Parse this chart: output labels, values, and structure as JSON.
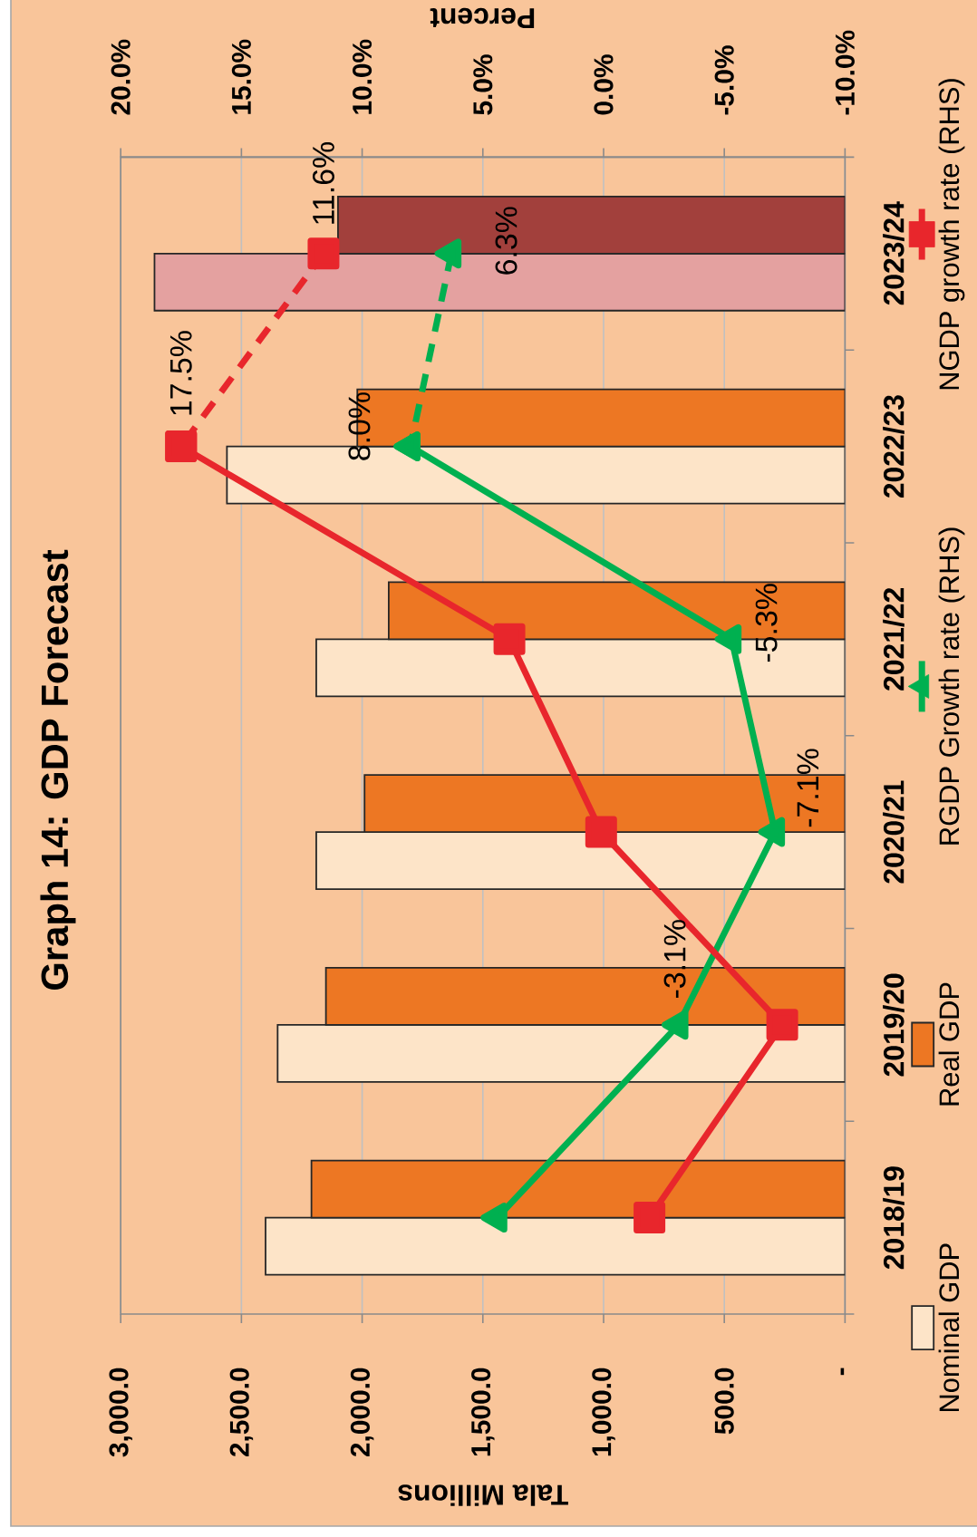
{
  "chart_data": {
    "type": "bar",
    "orientation": "horizontal",
    "title": "Graph 14: GDP Forecast",
    "xlabel": "Tala Millions",
    "x2label": "Percent",
    "categories": [
      "2023/24",
      "2022/23",
      "2021/22",
      "2020/21",
      "2019/20",
      "2018/19"
    ],
    "series": [
      {
        "name": "Nominal GDP",
        "color": "#fde4c8",
        "colors": [
          "#e4a1a0",
          "#fde4c8",
          "#fde4c8",
          "#fde4c8",
          "#fde4c8",
          "#fde4c8"
        ],
        "values": [
          2860,
          2560,
          2190,
          2190,
          2350,
          2400
        ]
      },
      {
        "name": "Real GDP",
        "color": "#ed7723",
        "colors": [
          "#a2403c",
          "#ed7723",
          "#ed7723",
          "#ed7723",
          "#ed7723",
          "#ed7723"
        ],
        "values": [
          2100,
          2020,
          1890,
          1990,
          2150,
          2210
        ]
      },
      {
        "name": "RGDP Growth rate (RHS)",
        "type": "line",
        "axis": "x2",
        "color": "#00b050",
        "marker": "triangle",
        "line_style": "solid",
        "values": [
          null,
          8.0,
          -5.3,
          -7.1,
          -3.1,
          4.4
        ],
        "value_labels": [
          null,
          "8.0%",
          "-5.3%",
          "-7.1%",
          "-3.1%",
          null
        ]
      },
      {
        "type": "line",
        "axis": "x2",
        "color": "#00b050",
        "marker": "triangle",
        "line_style": "dashed",
        "values": [
          6.3,
          8.0,
          null,
          null,
          null,
          null
        ],
        "value_labels": [
          "6.3%",
          null,
          null,
          null,
          null,
          null
        ]
      },
      {
        "name": "NGDP growth rate (RHS)",
        "type": "line",
        "axis": "x2",
        "color": "#e8262c",
        "marker": "square",
        "line_style": "solid",
        "values": [
          null,
          17.5,
          3.9,
          0.1,
          -7.4,
          -1.9
        ],
        "value_labels": [
          null,
          "17.5%",
          null,
          null,
          null,
          null
        ]
      },
      {
        "type": "line",
        "axis": "x2",
        "color": "#e8262c",
        "marker": "square",
        "line_style": "dashed",
        "values": [
          11.6,
          17.5,
          null,
          null,
          null,
          null
        ],
        "value_labels": [
          "11.6%",
          null,
          null,
          null,
          null,
          null
        ]
      }
    ],
    "xlim": [
      3000,
      0
    ],
    "xticks": [
      {
        "value": 3000,
        "label": "3,000.0"
      },
      {
        "value": 2500,
        "label": "2,500.0"
      },
      {
        "value": 2000,
        "label": "2,000.0"
      },
      {
        "value": 1500,
        "label": "1,500.0"
      },
      {
        "value": 1000,
        "label": "1,000.0"
      },
      {
        "value": 500,
        "label": "500.0"
      },
      {
        "value": 0,
        "label": "-"
      }
    ],
    "x2lim": [
      20,
      -10
    ],
    "x2ticks": [
      {
        "value": 20,
        "label": "20.0%"
      },
      {
        "value": 15,
        "label": "15.0%"
      },
      {
        "value": 10,
        "label": "10.0%"
      },
      {
        "value": 5,
        "label": "5.0%"
      },
      {
        "value": 0,
        "label": "0.0%"
      },
      {
        "value": -5,
        "label": "-5.0%"
      },
      {
        "value": -10,
        "label": "-10.0%"
      }
    ],
    "grid": "x",
    "legend": "right"
  }
}
